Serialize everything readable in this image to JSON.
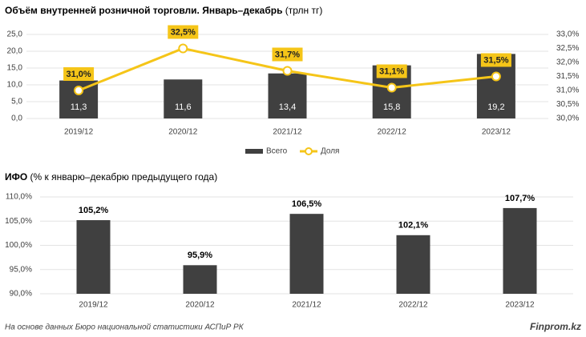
{
  "chart_data": [
    {
      "type": "combo",
      "title": "Объём внутренней розничной торговли. Январь–декабрь",
      "title_unit": "(трлн тг)",
      "categories": [
        "2019/12",
        "2020/12",
        "2021/12",
        "2022/12",
        "2023/12"
      ],
      "series": [
        {
          "name": "Всего",
          "color": "#404040",
          "values": [
            11.3,
            11.6,
            13.4,
            15.8,
            19.2
          ],
          "value_labels": [
            "11,3",
            "11,6",
            "13,4",
            "15,8",
            "19,2"
          ]
        },
        {
          "name": "Доля",
          "color": "#f5c518",
          "axis": "y2",
          "values": [
            31.0,
            32.5,
            31.7,
            31.1,
            31.5
          ],
          "value_labels": [
            "31,0%",
            "32,5%",
            "31,7%",
            "31,1%",
            "31,5%"
          ]
        }
      ],
      "ylim": [
        0,
        25
      ],
      "yticks": [
        {
          "value": 0,
          "label": "0,0"
        },
        {
          "value": 5,
          "label": "5,0"
        },
        {
          "value": 10,
          "label": "10,0"
        },
        {
          "value": 15,
          "label": "15,0"
        },
        {
          "value": 20,
          "label": "20,0"
        },
        {
          "value": 25,
          "label": "25,0"
        }
      ],
      "y2lim": [
        30,
        33
      ],
      "y2ticks": [
        {
          "value": 30,
          "label": "30,0%"
        },
        {
          "value": 30.5,
          "label": "30,5%"
        },
        {
          "value": 31,
          "label": "31,0%"
        },
        {
          "value": 31.5,
          "label": "31,5%"
        },
        {
          "value": 32,
          "label": "32,0%"
        },
        {
          "value": 32.5,
          "label": "32,5%"
        },
        {
          "value": 33,
          "label": "33,0%"
        }
      ],
      "grid": true,
      "legend": "bottom"
    },
    {
      "type": "bar",
      "title": "ИФО",
      "title_unit": "(% к январю–декабрю предыдущего года)",
      "categories": [
        "2019/12",
        "2020/12",
        "2021/12",
        "2022/12",
        "2023/12"
      ],
      "values": [
        105.2,
        95.9,
        106.5,
        102.1,
        107.7
      ],
      "value_labels": [
        "105,2%",
        "95,9%",
        "106,5%",
        "102,1%",
        "107,7%"
      ],
      "color": "#404040",
      "ylim": [
        90,
        110
      ],
      "yticks": [
        {
          "value": 90,
          "label": "90,0%"
        },
        {
          "value": 95,
          "label": "95,0%"
        },
        {
          "value": 100,
          "label": "100,0%"
        },
        {
          "value": 105,
          "label": "105,0%"
        },
        {
          "value": 110,
          "label": "110,0%"
        }
      ],
      "grid": true
    }
  ],
  "footer": {
    "source": "На основе данных Бюро национальной статистики АСПиР РК",
    "brand": "Finprom.kz"
  }
}
